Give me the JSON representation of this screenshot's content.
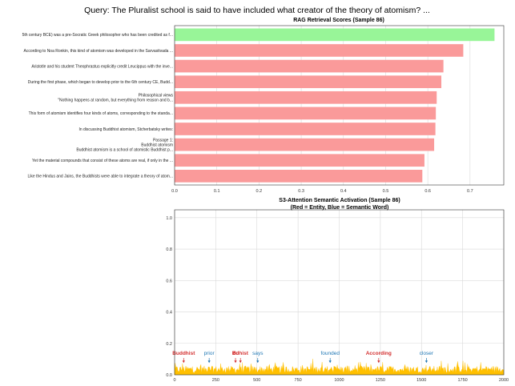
{
  "suptitle": "Query: The Pluralist school is said to have included what creator of the theory of atomism? ...",
  "chart_data": [
    {
      "type": "bar",
      "orientation": "horizontal",
      "title": "RAG Retrieval Scores (Sample 86)",
      "xlim": [
        0,
        0.78
      ],
      "xticks": [
        "0.0",
        "0.1",
        "0.2",
        "0.3",
        "0.4",
        "0.5",
        "0.6",
        "0.7"
      ],
      "xtick_values": [
        0,
        0.1,
        0.2,
        0.3,
        0.4,
        0.5,
        0.6,
        0.7
      ],
      "top_color": "#98f598",
      "other_color": "#fa9a9a",
      "categories": [
        "5th century BCE) was a pre-Socratic Greek philosopher who has been credited as f...",
        "According to Noa Ronkin, this kind of atomism was developed in the Sarvastivada ...",
        "Aristotle and his student Theophrastus explicitly credit Leucippus with the inve...",
        "During the first phase, which began to develop prior to the 6th century CE, Budd...",
        "Philosophical views\n\"Nothing happens at random, but everything from reason and b...",
        "This form of atomism identifies four kinds of atoms, corresponding to the standa...",
        "In discussing Buddhist atomism, Stcherbatsky writes:",
        "Passage 1:\nBuddhist atomism\nBuddhist atomism is a school of atomistic Buddhist p...",
        "Yet the material compounds that consist of these atoms are real, if only in the ...",
        "Like the Hindus and Jains, the Buddhists were able to integrate a theory of atom..."
      ],
      "values": [
        0.758,
        0.684,
        0.637,
        0.632,
        0.621,
        0.619,
        0.618,
        0.615,
        0.592,
        0.587
      ]
    },
    {
      "type": "area",
      "title": "S3-Attention Semantic Activation (Sample 86)",
      "subtitle": "(Red = Entity, Blue = Semantic Word)",
      "xlim": [
        0,
        2000
      ],
      "ylim": [
        0,
        1.05
      ],
      "xticks": [
        "0",
        "250",
        "500",
        "750",
        "1000",
        "1250",
        "1500",
        "1750",
        "2000"
      ],
      "xtick_values": [
        0,
        250,
        500,
        750,
        1000,
        1250,
        1500,
        1750,
        2000
      ],
      "yticks": [
        "0.0",
        "0.2",
        "0.4",
        "0.6",
        "0.8",
        "1.0"
      ],
      "ytick_values": [
        0,
        0.2,
        0.4,
        0.6,
        0.8,
        1.0
      ],
      "fill_color": "#ffc000",
      "entity_color": "#d32f2f",
      "semantic_color": "#1f77b4",
      "annotations": [
        {
          "label": "Buddhist",
          "x": 55,
          "kind": "entity"
        },
        {
          "label": "prior",
          "x": 210,
          "kind": "semantic"
        },
        {
          "label": "Bu",
          "x": 370,
          "kind": "entity"
        },
        {
          "label": "ddhist",
          "x": 400,
          "kind": "entity"
        },
        {
          "label": "says",
          "x": 505,
          "kind": "semantic"
        },
        {
          "label": "founded",
          "x": 945,
          "kind": "semantic"
        },
        {
          "label": "According",
          "x": 1240,
          "kind": "entity"
        },
        {
          "label": "closer",
          "x": 1530,
          "kind": "semantic"
        }
      ]
    }
  ]
}
